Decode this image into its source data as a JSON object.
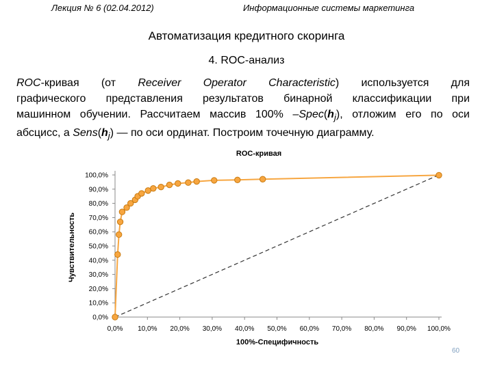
{
  "header": {
    "left": "Лекция № 6 (02.04.2012)",
    "right": "Информационные системы маркетинга"
  },
  "title": "Автоматизация кредитного скоринга",
  "subtitle": "4. ROC-анализ",
  "paragraph": {
    "l1": [
      "ROC",
      "-кривая (от ",
      "Receiver Operator Characteristic",
      ") используется для"
    ],
    "l2": "графического представления результатов бинарной классификации при",
    "l3": [
      "машинном обучении. Рассчитаем массив 100% –",
      "Spec",
      "(",
      "h",
      "j",
      "), отложим его по оси"
    ],
    "l4": [
      "абсцисс, а ",
      "Sens",
      "(",
      "h",
      "j",
      ") — по оси ординат. Построим точечную диаграмму."
    ]
  },
  "chart_data": {
    "type": "scatter",
    "title": "ROC-кривая",
    "xlabel": "100%-Специфичность",
    "ylabel": "Чувствительность",
    "xlim": [
      0,
      100
    ],
    "ylim": [
      0,
      100
    ],
    "x_ticks": [
      "0,0%",
      "10,0%",
      "20,0%",
      "30,0%",
      "40,0%",
      "50,0%",
      "60,0%",
      "70,0%",
      "80,0%",
      "90,0%",
      "100,0%"
    ],
    "y_ticks": [
      "0,0%",
      "10,0%",
      "20,0%",
      "30,0%",
      "40,0%",
      "50,0%",
      "60,0%",
      "70,0%",
      "80,0%",
      "90,0%",
      "100,0%"
    ],
    "grid": false,
    "series": [
      {
        "color": "#f7a640",
        "line": true,
        "x": [
          0,
          0.8,
          1.2,
          1.6,
          2.2,
          3.6,
          4.8,
          6.2,
          7.0,
          8.2,
          10.2,
          11.8,
          14.2,
          16.8,
          19.4,
          22.6,
          25.2,
          30.6,
          37.8,
          45.6,
          100
        ],
        "y": [
          0,
          44,
          58,
          67,
          74,
          77,
          80,
          82.5,
          85,
          87,
          89,
          90.5,
          91.5,
          93,
          94,
          94.6,
          95.4,
          96.2,
          96.5,
          97,
          99.8
        ]
      }
    ],
    "diagonal": {
      "color": "#333333",
      "dashed": true
    },
    "marker_edge_color": "#c87a10"
  },
  "page_number": "60"
}
